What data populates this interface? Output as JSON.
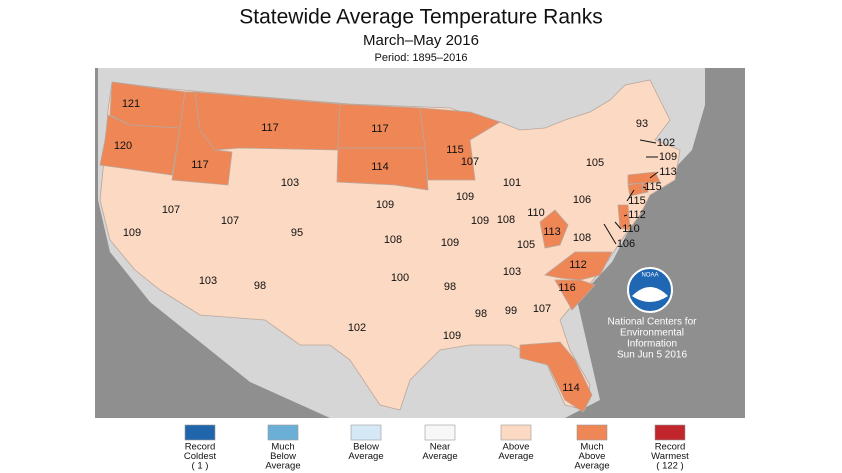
{
  "title": "Statewide Average Temperature Ranks",
  "subtitle": "March–May 2016",
  "period": "Period: 1895–2016",
  "logo_text": "NOAA",
  "credit": [
    "National Centers for",
    "Environmental",
    "Information",
    "Sun Jun  5 2016"
  ],
  "legend": [
    {
      "lines": [
        "Record",
        "Coldest",
        "( 1 )"
      ],
      "color": "#2166ac"
    },
    {
      "lines": [
        "Much",
        "Below",
        "Average"
      ],
      "color": "#6baed6"
    },
    {
      "lines": [
        "Below",
        "Average"
      ],
      "color": "#d4e8f6"
    },
    {
      "lines": [
        "Near",
        "Average"
      ],
      "color": "#f7f7f7"
    },
    {
      "lines": [
        "Above",
        "Average"
      ],
      "color": "#fcd9c2"
    },
    {
      "lines": [
        "Much",
        "Above",
        "Average"
      ],
      "color": "#ee8656"
    },
    {
      "lines": [
        "Record",
        "Warmest",
        "( 122 )"
      ],
      "color": "#c0262c"
    }
  ],
  "states": [
    {
      "rank": 121,
      "color": "#ee8656"
    },
    {
      "rank": 120,
      "color": "#ee8656"
    },
    {
      "rank": 117,
      "color": "#ee8656"
    },
    {
      "rank": 117,
      "color": "#ee8656"
    },
    {
      "rank": 117,
      "color": "#ee8656"
    },
    {
      "rank": 114,
      "color": "#ee8656"
    },
    {
      "rank": 115,
      "color": "#ee8656"
    },
    {
      "rank": 107,
      "color": "#fcd9c2"
    },
    {
      "rank": 101,
      "color": "#fcd9c2"
    },
    {
      "rank": 103,
      "color": "#fcd9c2"
    },
    {
      "rank": 109,
      "color": "#fcd9c2"
    },
    {
      "rank": 109,
      "color": "#fcd9c2"
    },
    {
      "rank": 107,
      "color": "#fcd9c2"
    },
    {
      "rank": 107,
      "color": "#fcd9c2"
    },
    {
      "rank": 95,
      "color": "#fcd9c2"
    },
    {
      "rank": 108,
      "color": "#fcd9c2"
    },
    {
      "rank": 109,
      "color": "#fcd9c2"
    },
    {
      "rank": 109,
      "color": "#fcd9c2"
    },
    {
      "rank": 108,
      "color": "#fcd9c2"
    },
    {
      "rank": 110,
      "color": "#fcd9c2"
    },
    {
      "rank": 106,
      "color": "#fcd9c2"
    },
    {
      "rank": 105,
      "color": "#fcd9c2"
    },
    {
      "rank": 93,
      "color": "#fcd9c2"
    },
    {
      "rank": 109,
      "color": "#fcd9c2"
    },
    {
      "rank": 103,
      "color": "#fcd9c2"
    },
    {
      "rank": 98,
      "color": "#fcd9c2"
    },
    {
      "rank": 100,
      "color": "#fcd9c2"
    },
    {
      "rank": 102,
      "color": "#fcd9c2"
    },
    {
      "rank": 98,
      "color": "#fcd9c2"
    },
    {
      "rank": 109,
      "color": "#fcd9c2"
    },
    {
      "rank": 98,
      "color": "#fcd9c2"
    },
    {
      "rank": 99,
      "color": "#fcd9c2"
    },
    {
      "rank": 107,
      "color": "#fcd9c2"
    },
    {
      "rank": 114,
      "color": "#ee8656"
    },
    {
      "rank": 116,
      "color": "#ee8656"
    },
    {
      "rank": 112,
      "color": "#ee8656"
    },
    {
      "rank": 105,
      "color": "#fcd9c2"
    },
    {
      "rank": 103,
      "color": "#fcd9c2"
    },
    {
      "rank": 113,
      "color": "#ee8656"
    },
    {
      "rank": 108,
      "color": "#fcd9c2"
    },
    {
      "rank": 102,
      "color": "#fcd9c2"
    },
    {
      "rank": 109,
      "color": "#fcd9c2"
    },
    {
      "rank": 113,
      "color": "#ee8656"
    },
    {
      "rank": 115,
      "color": "#ee8656"
    },
    {
      "rank": 115,
      "color": "#ee8656"
    },
    {
      "rank": 112,
      "color": "#ee8656"
    },
    {
      "rank": 110,
      "color": "#fcd9c2"
    },
    {
      "rank": 106,
      "color": "#fcd9c2"
    }
  ]
}
